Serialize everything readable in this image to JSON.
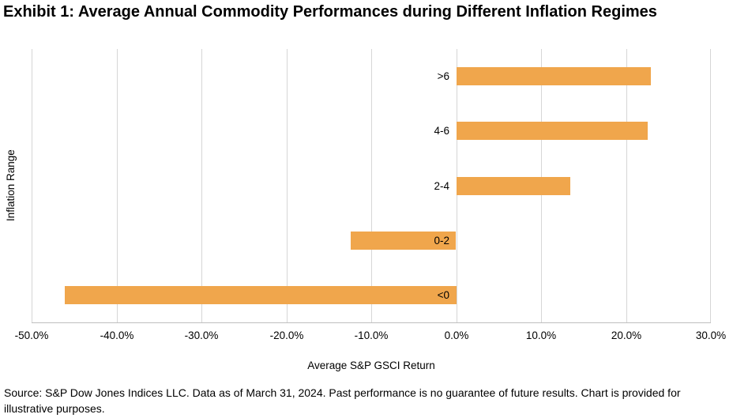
{
  "page": {
    "title": "Exhibit 1: Average Annual Commodity Performances during Different Inflation Regimes",
    "source_note": "Source: S&P Dow Jones Indices LLC. Data as of March 31, 2024. Past performance is no guarantee of future results. Chart is provided for illustrative purposes."
  },
  "chart_data": {
    "type": "bar",
    "orientation": "horizontal",
    "title": "Exhibit 1: Average Annual Commodity Performances during Different Inflation Regimes",
    "categories": [
      ">6",
      "4-6",
      "2-4",
      "0-2",
      "<0"
    ],
    "values": [
      22.9,
      22.5,
      13.4,
      -12.4,
      -46.1
    ],
    "value_unit": "%",
    "xlabel": "Average S&P GSCI Return",
    "ylabel": "Inflation Range",
    "xlim": [
      -50,
      30
    ],
    "xticks": [
      -50,
      -40,
      -30,
      -20,
      -10,
      0,
      10,
      20,
      30
    ],
    "xtick_labels": [
      "-50.0%",
      "-40.0%",
      "-30.0%",
      "-20.0%",
      "-10.0%",
      "0.0%",
      "10.0%",
      "20.0%",
      "30.0%"
    ],
    "bar_color": "#F0A64C",
    "gridline_color": "#D6D6D6",
    "axis_line_color": "#BFBFBF",
    "grid": true,
    "legend": false
  }
}
